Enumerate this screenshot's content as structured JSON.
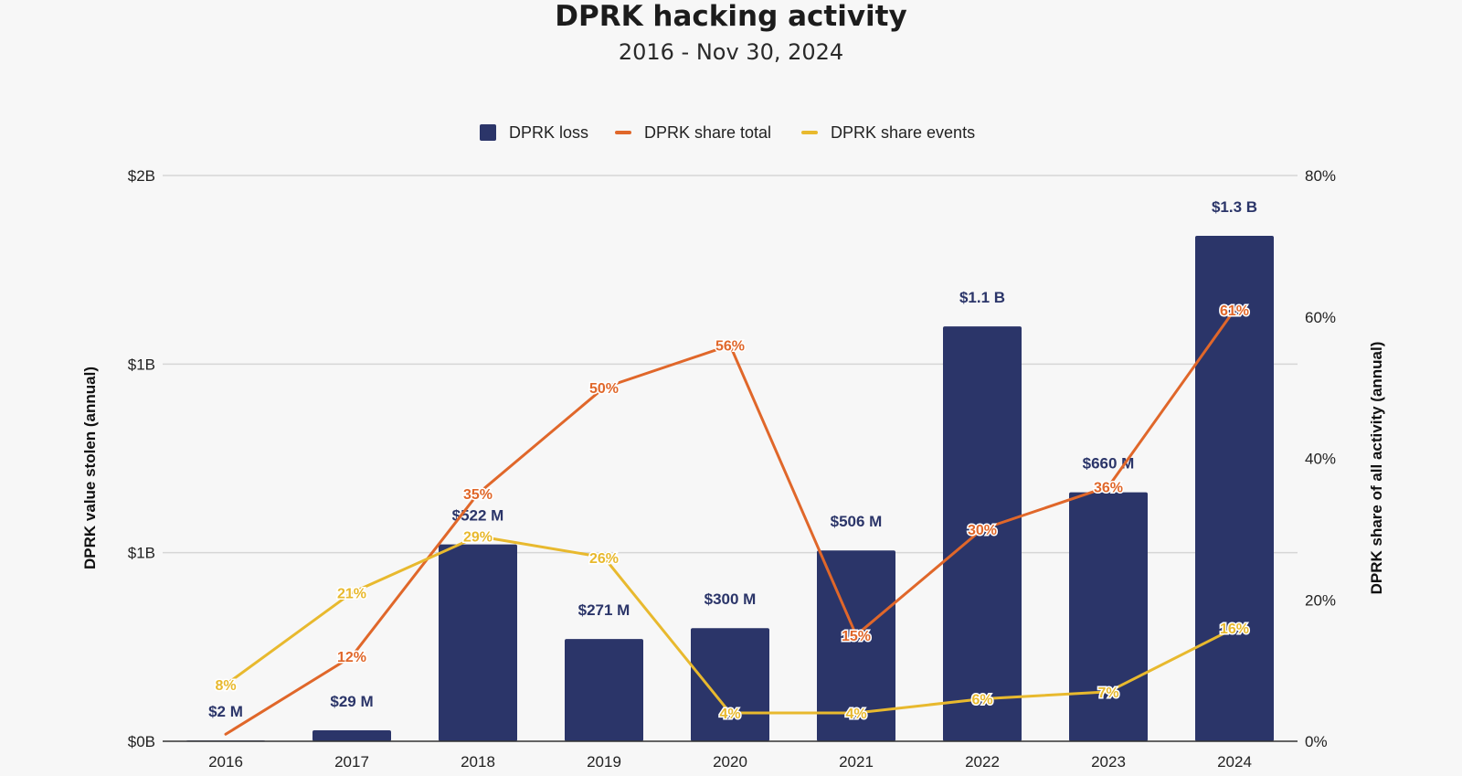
{
  "chart_data": {
    "type": "bar",
    "title": "DPRK hacking activity",
    "subtitle": "2016 - Nov 30, 2024",
    "categories": [
      "2016",
      "2017",
      "2018",
      "2019",
      "2020",
      "2021",
      "2022",
      "2023",
      "2024"
    ],
    "series": [
      {
        "name": "DPRK loss",
        "type": "bar",
        "axis": "left",
        "color": "#2b3569",
        "values": [
          2,
          29,
          522,
          271,
          300,
          506,
          1100,
          660,
          1340
        ],
        "labels": [
          "$2  M",
          "$29  M",
          "$522  M",
          "$271  M",
          "$300  M",
          "$506  M",
          "$1.1 B",
          "$660  M",
          "$1.3 B"
        ]
      },
      {
        "name": "DPRK share total",
        "type": "line",
        "axis": "right",
        "color": "#e0672a",
        "values": [
          1,
          12,
          35,
          50,
          56,
          15,
          30,
          36,
          61
        ],
        "labels": [
          "",
          "12%",
          "35%",
          "50%",
          "56%",
          "15%",
          "30%",
          "36%",
          "61%"
        ]
      },
      {
        "name": "DPRK share events",
        "type": "line",
        "axis": "right",
        "color": "#e8b92e",
        "values": [
          8,
          21,
          29,
          26,
          4,
          4,
          6,
          7,
          16
        ],
        "labels": [
          "8%",
          "21%",
          "29%",
          "26%",
          "4%",
          "4%",
          "6%",
          "7%",
          "16%"
        ]
      }
    ],
    "y_left": {
      "label": "DPRK value stolen (annual)",
      "min": 0,
      "max": 1500,
      "ticks": [
        0,
        500,
        1000,
        1500
      ],
      "tick_labels": [
        "$0B",
        "$1B",
        "$1B",
        "$2B"
      ]
    },
    "y_right": {
      "label": "DPRK share of all activity (annual)",
      "min": 0,
      "max": 80,
      "ticks": [
        0,
        20,
        40,
        60,
        80
      ],
      "tick_labels": [
        "0%",
        "20%",
        "40%",
        "60%",
        "80%"
      ]
    },
    "legend_position": "top-center",
    "grid": true
  }
}
